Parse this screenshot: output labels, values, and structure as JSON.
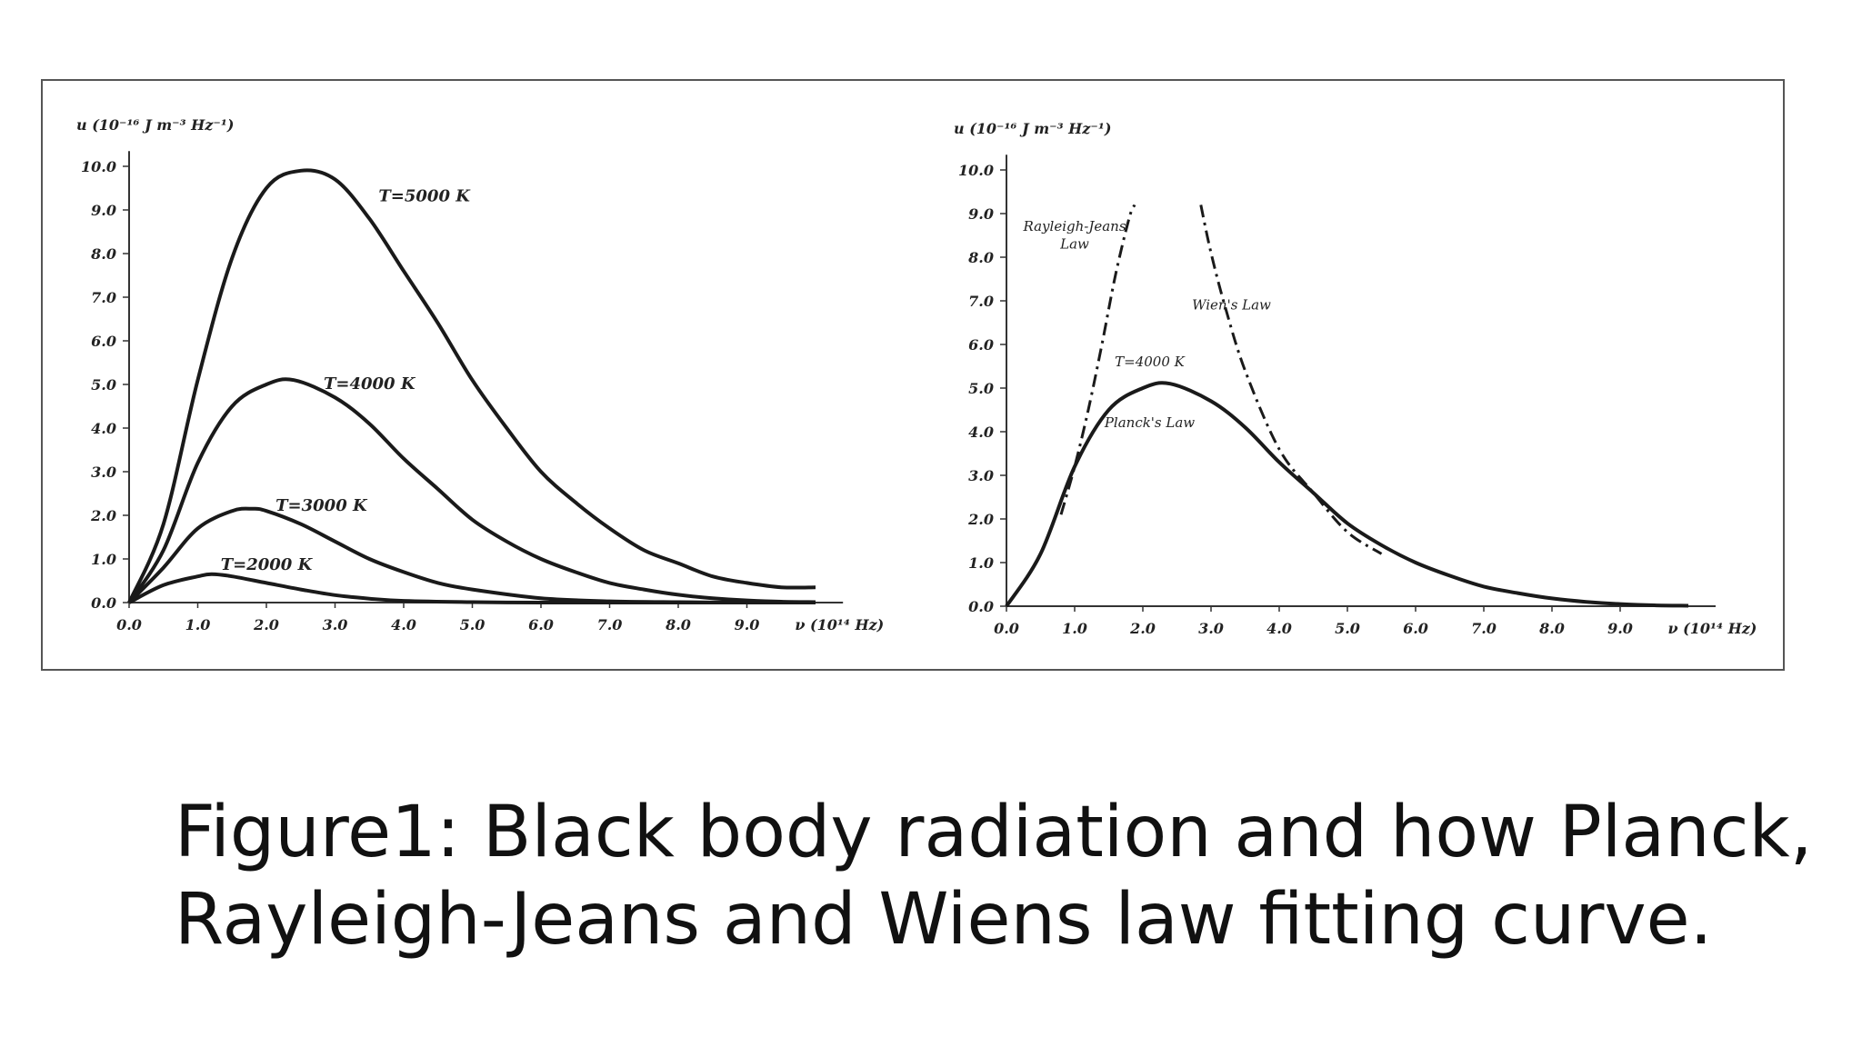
{
  "caption": {
    "line1": "Figure1: Black body radiation and how Planck,",
    "line2": "Rayleigh-Jeans and Wiens law fitting curve."
  },
  "chart_data": [
    {
      "type": "line",
      "title": "",
      "ylabel": "u (10⁻¹⁶ J m⁻³ Hz⁻¹)",
      "xlabel": "ν (10¹⁴ Hz)",
      "xlim": [
        0,
        10
      ],
      "ylim": [
        0,
        10
      ],
      "xticks": [
        "0.0",
        "1.0",
        "2.0",
        "3.0",
        "4.0",
        "5.0",
        "6.0",
        "7.0",
        "8.0",
        "9.0"
      ],
      "yticks": [
        "0.0",
        "1.0",
        "2.0",
        "3.0",
        "4.0",
        "5.0",
        "6.0",
        "7.0",
        "8.0",
        "9.0",
        "10.0"
      ],
      "grid": false,
      "series": [
        {
          "name": "T=5000 K",
          "style": "solid",
          "temperature": 5000,
          "label_at": [
            4.3,
            9.2
          ],
          "x": [
            0,
            0.5,
            1,
            1.5,
            2,
            2.5,
            3,
            3.5,
            4,
            4.5,
            5,
            5.5,
            6,
            6.5,
            7,
            7.5,
            8,
            8.5,
            9,
            9.5,
            10
          ],
          "y": [
            0,
            1.8,
            5.1,
            7.9,
            9.5,
            9.9,
            9.7,
            8.8,
            7.6,
            6.4,
            5.1,
            4.0,
            3.0,
            2.3,
            1.7,
            1.2,
            0.9,
            0.6,
            0.45,
            0.35,
            0.35
          ]
        },
        {
          "name": "T=4000 K",
          "style": "solid",
          "temperature": 4000,
          "label_at": [
            3.5,
            4.9
          ],
          "x": [
            0,
            0.5,
            1,
            1.5,
            2,
            2.4,
            3,
            3.5,
            4,
            4.5,
            5,
            5.5,
            6,
            6.5,
            7,
            7.5,
            8,
            8.5,
            9,
            9.5,
            10
          ],
          "y": [
            0,
            1.2,
            3.2,
            4.5,
            5.0,
            5.1,
            4.7,
            4.1,
            3.3,
            2.6,
            1.9,
            1.4,
            1.0,
            0.7,
            0.45,
            0.3,
            0.18,
            0.1,
            0.05,
            0.02,
            0.01
          ]
        },
        {
          "name": "T=3000 K",
          "style": "solid",
          "temperature": 3000,
          "label_at": [
            2.8,
            2.1
          ],
          "x": [
            0,
            0.5,
            1,
            1.5,
            1.8,
            2,
            2.5,
            3,
            3.5,
            4,
            4.5,
            5,
            6,
            7,
            8,
            9,
            10
          ],
          "y": [
            0,
            0.8,
            1.7,
            2.1,
            2.15,
            2.1,
            1.8,
            1.4,
            1.0,
            0.7,
            0.45,
            0.3,
            0.1,
            0.03,
            0.01,
            0,
            0
          ]
        },
        {
          "name": "T=2000 K",
          "style": "solid",
          "temperature": 2000,
          "label_at": [
            2.0,
            0.75
          ],
          "x": [
            0,
            0.5,
            1,
            1.2,
            1.5,
            2,
            2.5,
            3,
            3.5,
            4,
            5,
            6,
            7,
            8,
            9,
            10
          ],
          "y": [
            0,
            0.4,
            0.6,
            0.65,
            0.6,
            0.45,
            0.3,
            0.17,
            0.09,
            0.04,
            0.01,
            0,
            0,
            0,
            0,
            0
          ]
        }
      ]
    },
    {
      "type": "line",
      "title": "",
      "ylabel": "u (10⁻¹⁶ J m⁻³ Hz⁻¹)",
      "xlabel": "ν (10¹⁴ Hz)",
      "xlim": [
        0,
        10
      ],
      "ylim": [
        0,
        10
      ],
      "xticks": [
        "0.0",
        "1.0",
        "2.0",
        "3.0",
        "4.0",
        "5.0",
        "6.0",
        "7.0",
        "8.0",
        "9.0"
      ],
      "yticks": [
        "0.0",
        "1.0",
        "2.0",
        "3.0",
        "4.0",
        "5.0",
        "6.0",
        "7.0",
        "8.0",
        "9.0",
        "10.0"
      ],
      "grid": false,
      "annotations": [
        {
          "text": "Rayleigh-Jeans",
          "at": [
            1.0,
            8.6
          ]
        },
        {
          "text": "Law",
          "at": [
            1.0,
            8.2
          ]
        },
        {
          "text": "Wien's Law",
          "at": [
            3.3,
            6.8
          ]
        },
        {
          "text": "T=4000 K",
          "at": [
            2.1,
            5.5
          ]
        },
        {
          "text": "Planck's Law",
          "at": [
            2.1,
            4.1
          ]
        }
      ],
      "series": [
        {
          "name": "",
          "style": "solid",
          "temperature": 4000,
          "x": [
            0,
            0.5,
            1,
            1.5,
            2,
            2.4,
            3,
            3.5,
            4,
            4.5,
            5,
            5.5,
            6,
            6.5,
            7,
            7.5,
            8,
            8.5,
            9,
            9.5,
            10
          ],
          "y": [
            0,
            1.2,
            3.2,
            4.5,
            5.0,
            5.1,
            4.7,
            4.1,
            3.3,
            2.6,
            1.9,
            1.4,
            1.0,
            0.7,
            0.45,
            0.3,
            0.18,
            0.1,
            0.05,
            0.02,
            0.01
          ]
        },
        {
          "name": "",
          "style": "dashdot",
          "x": [
            0.8,
            1,
            1.2,
            1.4,
            1.6,
            1.8,
            1.88
          ],
          "y": [
            2.1,
            3.2,
            4.5,
            6.0,
            7.6,
            8.9,
            9.2
          ]
        },
        {
          "name": "",
          "style": "dashdot",
          "x": [
            2.85,
            3,
            3.2,
            3.5,
            4,
            4.5,
            5,
            5.5
          ],
          "y": [
            9.2,
            8.1,
            6.9,
            5.4,
            3.6,
            2.6,
            1.7,
            1.2
          ]
        }
      ]
    }
  ]
}
